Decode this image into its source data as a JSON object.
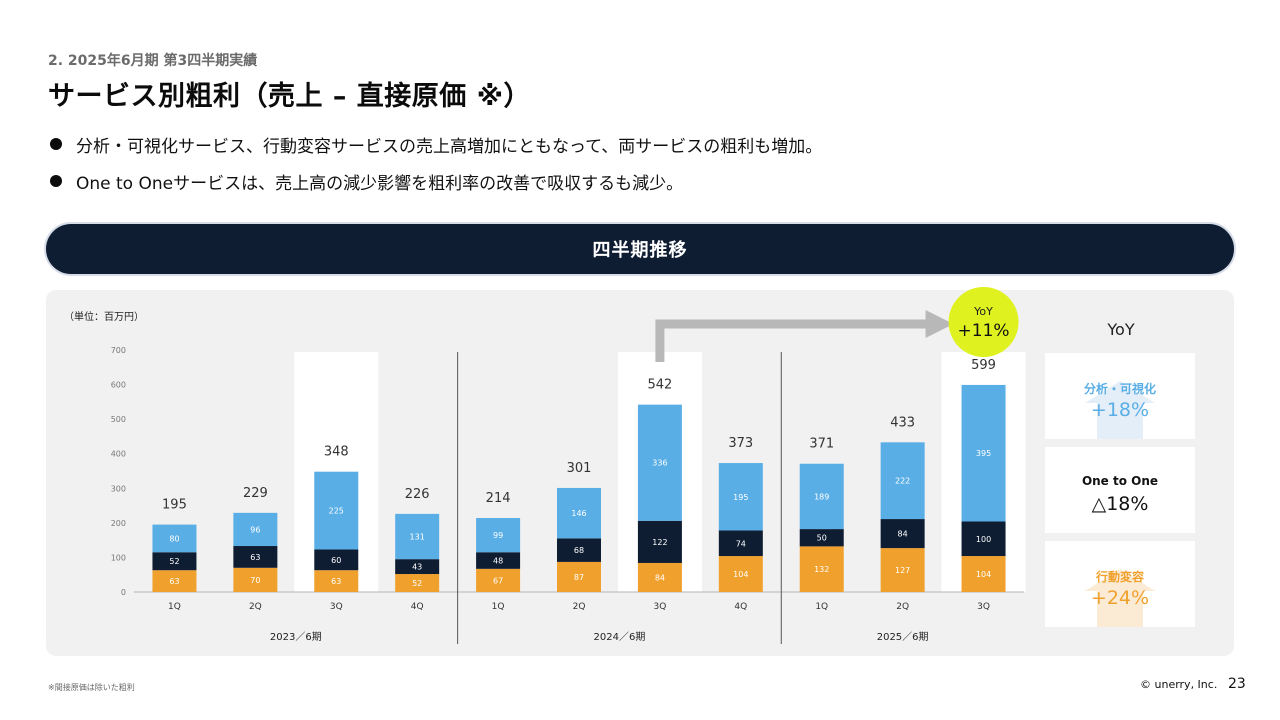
{
  "header": {
    "subtitle": "2. 2025年6月期 第3四半期実績",
    "title": "サービス別粗利（売上 – 直接原価 ※）"
  },
  "bullets": [
    "分析・可視化サービス、行動変容サービスの売上高増加にともなって、両サービスの粗利も増加。",
    "One to Oneサービスは、売上高の減少影響を粗利率の改善で吸収するも減少。"
  ],
  "banner": {
    "label": "四半期推移"
  },
  "chart_data": {
    "type": "bar",
    "stacked": true,
    "unit_label": "（単位：百万円）",
    "ylim": [
      0,
      700
    ],
    "yticks": [
      0,
      100,
      200,
      300,
      400,
      500,
      600,
      700
    ],
    "categories": [
      "1Q",
      "2Q",
      "3Q",
      "4Q",
      "1Q",
      "2Q",
      "3Q",
      "4Q",
      "1Q",
      "2Q",
      "3Q"
    ],
    "periods": [
      {
        "label": "2023／6期",
        "count": 4
      },
      {
        "label": "2024／6期",
        "count": 4
      },
      {
        "label": "2025／6期",
        "count": 3
      }
    ],
    "highlighted": [
      2,
      6,
      10
    ],
    "series": [
      {
        "values": [
          63,
          70,
          63,
          52,
          67,
          87,
          84,
          104,
          132,
          127,
          104
        ],
        "color": "#f0a12d"
      },
      {
        "values": [
          52,
          63,
          60,
          43,
          48,
          68,
          122,
          74,
          50,
          84,
          100
        ],
        "color": "#0f1d33"
      },
      {
        "values": [
          80,
          96,
          225,
          131,
          99,
          146,
          336,
          195,
          189,
          222,
          395
        ],
        "color": "#5aaee6"
      }
    ],
    "totals": [
      195,
      229,
      348,
      226,
      214,
      301,
      542,
      373,
      371,
      433,
      599
    ],
    "callout": {
      "line1": "YoY",
      "line2": "+11%",
      "color": "#dff21f"
    }
  },
  "yoy": {
    "title": "YoY",
    "items": [
      {
        "label": "分析・可視化",
        "value": "+18%",
        "color": "#5aaee6",
        "arrow": "up",
        "arrow_color": "#e4eef8"
      },
      {
        "label": "One to One",
        "value": "△18%",
        "color": "#111111",
        "arrow": "none",
        "arrow_color": ""
      },
      {
        "label": "行動変容",
        "value": "+24%",
        "color": "#f0a12d",
        "arrow": "up",
        "arrow_color": "#fcebd4"
      }
    ]
  },
  "footer": {
    "footnote": "※間接原価は除いた粗利",
    "copyright": "© unerry, Inc.",
    "page": "23"
  }
}
